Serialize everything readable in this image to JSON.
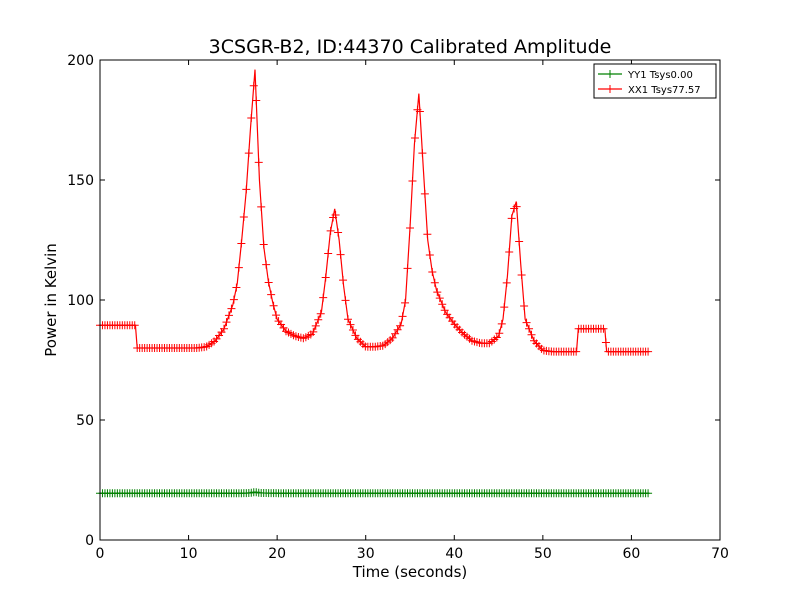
{
  "chart_data": {
    "type": "line",
    "title": "3CSGR-B2, ID:44370 Calibrated Amplitude",
    "xlabel": "Time (seconds)",
    "ylabel": "Power in Kelvin",
    "xlim": [
      0,
      70
    ],
    "ylim": [
      0,
      200
    ],
    "xticks": [
      0,
      10,
      20,
      30,
      40,
      50,
      60,
      70
    ],
    "yticks": [
      0,
      50,
      100,
      150,
      200
    ],
    "grid": false,
    "legend_position": "top-right",
    "series": [
      {
        "name": "YY1 Tsys0.00",
        "color": "#008000",
        "marker": "+",
        "x": [
          0,
          1,
          2,
          3,
          4,
          5,
          6,
          7,
          8,
          9,
          10,
          12,
          14,
          16,
          17,
          17.5,
          18,
          20,
          25,
          30,
          35,
          40,
          45,
          50,
          53,
          54,
          55,
          56,
          57,
          58,
          59,
          60,
          61,
          62
        ],
        "y": [
          19.5,
          19.5,
          19.5,
          19.5,
          19.5,
          19.5,
          19.5,
          19.5,
          19.5,
          19.5,
          19.5,
          19.5,
          19.5,
          19.5,
          19.6,
          20,
          19.6,
          19.5,
          19.5,
          19.5,
          19.5,
          19.5,
          19.5,
          19.5,
          19.5,
          19.5,
          19.5,
          19.5,
          19.5,
          19.5,
          19.5,
          19.5,
          19.5,
          19.5
        ]
      },
      {
        "name": "XX1 Tsys77.57",
        "color": "#ff0000",
        "marker": "+",
        "x": [
          0,
          1,
          2,
          3,
          4,
          4.2,
          5,
          6,
          7,
          8,
          9,
          10,
          11,
          12,
          13,
          14,
          15,
          15.5,
          16,
          16.5,
          17,
          17.5,
          18,
          18.5,
          19,
          19.5,
          20,
          21,
          22,
          23,
          24,
          25,
          25.5,
          26,
          26.5,
          27,
          27.5,
          28,
          29,
          30,
          31,
          32,
          33,
          34,
          34.5,
          35,
          35.5,
          36,
          36.5,
          37,
          37.5,
          38,
          39,
          40,
          41,
          42,
          43,
          44,
          45,
          45.5,
          46,
          46.5,
          47,
          47.5,
          48,
          49,
          50,
          51,
          52,
          53,
          53.8,
          54,
          55,
          56,
          57,
          57.2,
          58,
          59,
          60,
          61,
          62
        ],
        "y": [
          89.5,
          89.5,
          89.5,
          89.5,
          89.5,
          80,
          80,
          80,
          80,
          80,
          80,
          80,
          80,
          80.5,
          83,
          88,
          98,
          107,
          125,
          145,
          172,
          196,
          150,
          122,
          108,
          99,
          92,
          87,
          85,
          84,
          86,
          95,
          110,
          128,
          138,
          125,
          106,
          92,
          84,
          80.5,
          80.5,
          81,
          84,
          90,
          100,
          130,
          165,
          186,
          155,
          125,
          112,
          104,
          95,
          90,
          86,
          83,
          82,
          82,
          85,
          92,
          110,
          135,
          141,
          115,
          92,
          83,
          79,
          78.5,
          78.5,
          78.5,
          78.5,
          88,
          88,
          88,
          88,
          78.5,
          78.5,
          78.5,
          78.5,
          78.5,
          78.5
        ]
      }
    ]
  }
}
